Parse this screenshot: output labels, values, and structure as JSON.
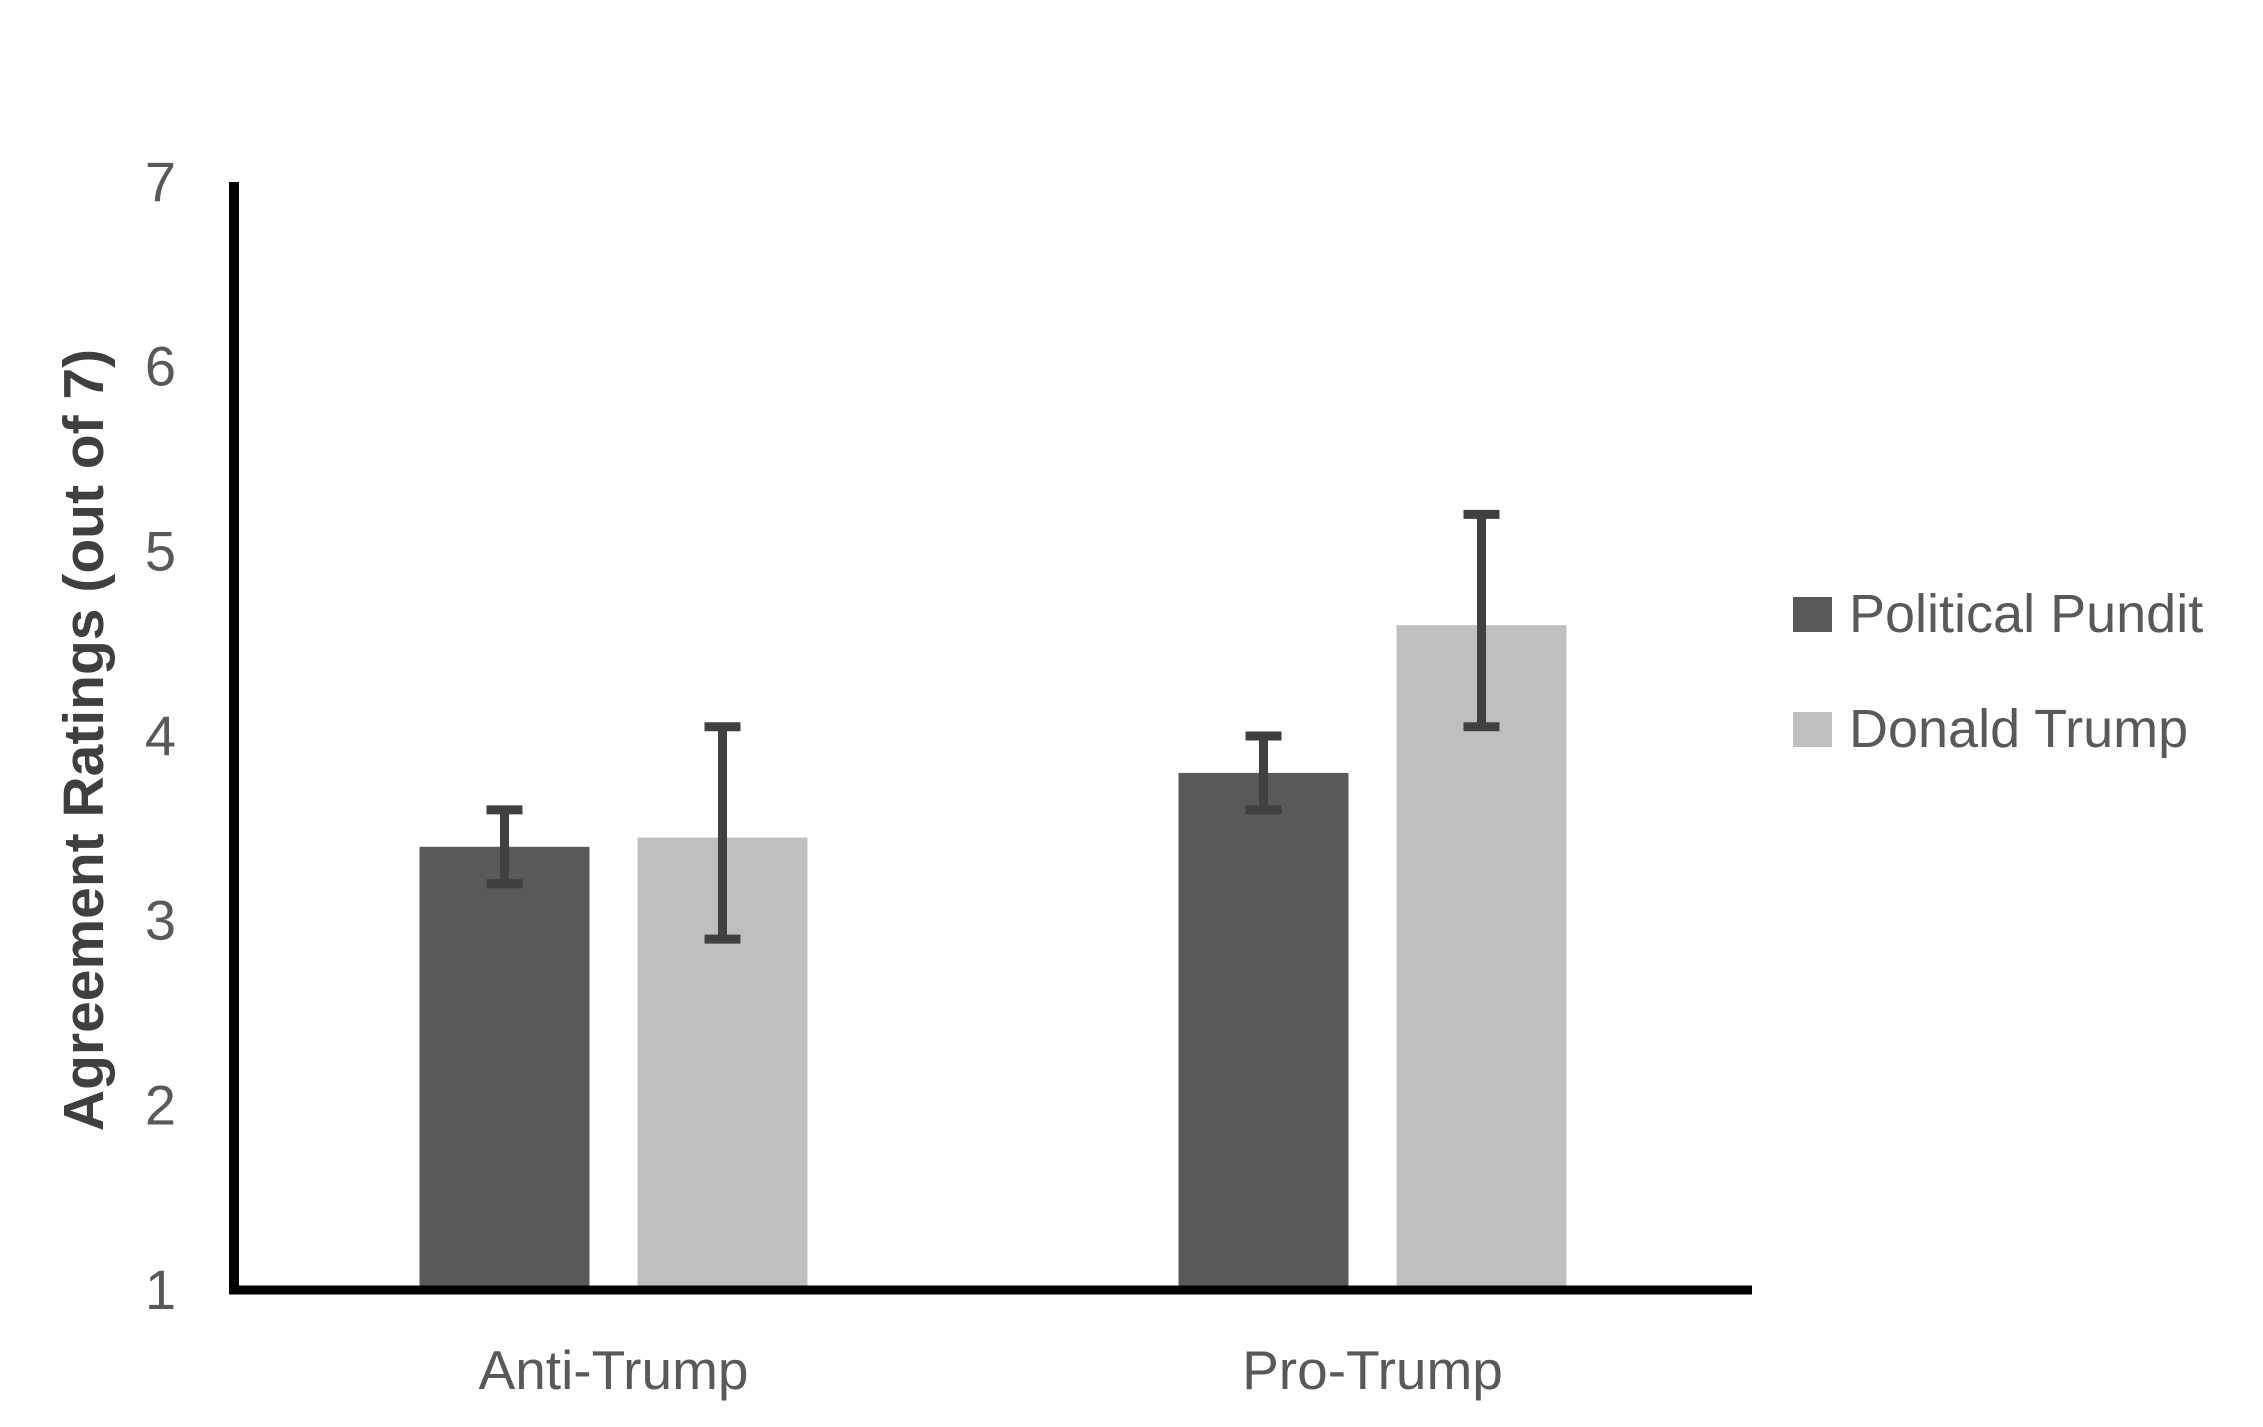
{
  "chart_data": {
    "type": "bar",
    "title": "",
    "categories": [
      "Anti-Trump",
      "Pro-Trump"
    ],
    "series": [
      {
        "name": "Political Pundit",
        "color": "#595959",
        "values": [
          3.4,
          3.8
        ],
        "error_low": [
          3.2,
          3.6
        ],
        "error_high": [
          3.6,
          4.0
        ]
      },
      {
        "name": "Donald Trump",
        "color": "#bfbfbf",
        "values": [
          3.45,
          4.6
        ],
        "error_low": [
          2.9,
          4.05
        ],
        "error_high": [
          4.05,
          5.2
        ]
      }
    ],
    "xlabel": "",
    "ylabel": "Agreement Ratings (out of 7)",
    "ylim": [
      1,
      7
    ],
    "yticks": [
      1,
      2,
      3,
      4,
      5,
      6,
      7
    ],
    "grid": false,
    "legend_position": "right",
    "error_bar_color": "#404040",
    "axis_color": "#000000",
    "text_color": "#595959",
    "background": "#ffffff"
  }
}
